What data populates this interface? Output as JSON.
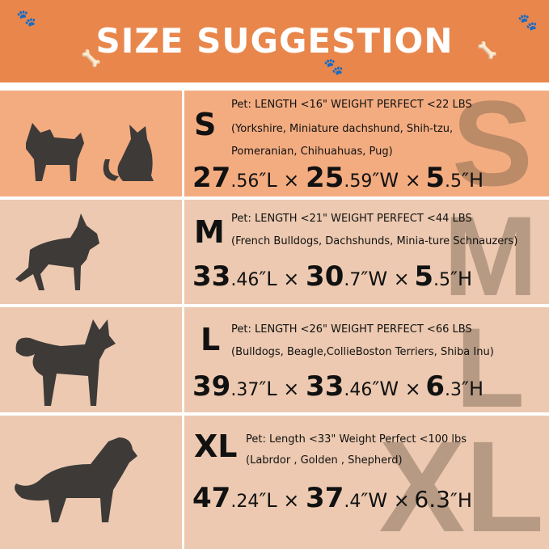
{
  "title": "SIZE SUGGESTION",
  "colors": {
    "header": "#e9864c",
    "row_small": "#f3ac80",
    "row": "#ecc9b0",
    "silhouette": "#3d3a38"
  },
  "rows": [
    {
      "size": "S",
      "pets": [
        "dog",
        "cat"
      ],
      "line1": "Pet: LENGTH <16\"  WEIGHT PERFECT <22 LBS",
      "line2": "(Yorkshire, Miniature dachshund, Shih-tzu,",
      "line3": "Pomeranian, Chihuahuas, Pug)",
      "dims": [
        {
          "big": "27",
          "small": ".56",
          "unit": "″L × "
        },
        {
          "big": "25",
          "small": ".59",
          "unit": "″W ×"
        },
        {
          "big": "5",
          "small": ".5",
          "unit": "″H"
        }
      ]
    },
    {
      "size": "M",
      "pets": [
        "dog"
      ],
      "line1": "Pet: LENGTH <21\"  WEIGHT PERFECT <44 LBS",
      "line2": "(French Bulldogs, Dachshunds, Minia-ture Schnauzers)",
      "dims": [
        {
          "big": "33",
          "small": ".46",
          "unit": "″L × "
        },
        {
          "big": "30",
          "small": ".7",
          "unit": "″W ×"
        },
        {
          "big": "5",
          "small": ".5",
          "unit": "″H"
        }
      ]
    },
    {
      "size": "L",
      "pets": [
        "dog"
      ],
      "line1": "Pet: LENGTH <26\" WEIGHT PERFECT <66 LBS",
      "line2": "(Bulldogs, Beagle,CollieBoston Terriers, Shiba Inu)",
      "dims": [
        {
          "big": "39",
          "small": ".37",
          "unit": "″L × "
        },
        {
          "big": "33",
          "small": ".46",
          "unit": "″W ×"
        },
        {
          "big": "6",
          "small": ".3",
          "unit": "″H"
        }
      ]
    },
    {
      "size": "XL",
      "pets": [
        "dog"
      ],
      "line1": "Pet: Length <33\"  Weight Perfect <100 lbs",
      "line2": "(Labrdor , Golden ,  Shepherd)",
      "dims": [
        {
          "big": "47",
          "small": ".24",
          "unit": "″L × "
        },
        {
          "big": "37",
          "small": ".4",
          "unit": "″W ×"
        },
        {
          "big": "",
          "small": "6.3",
          "unit": "″H"
        }
      ]
    }
  ]
}
